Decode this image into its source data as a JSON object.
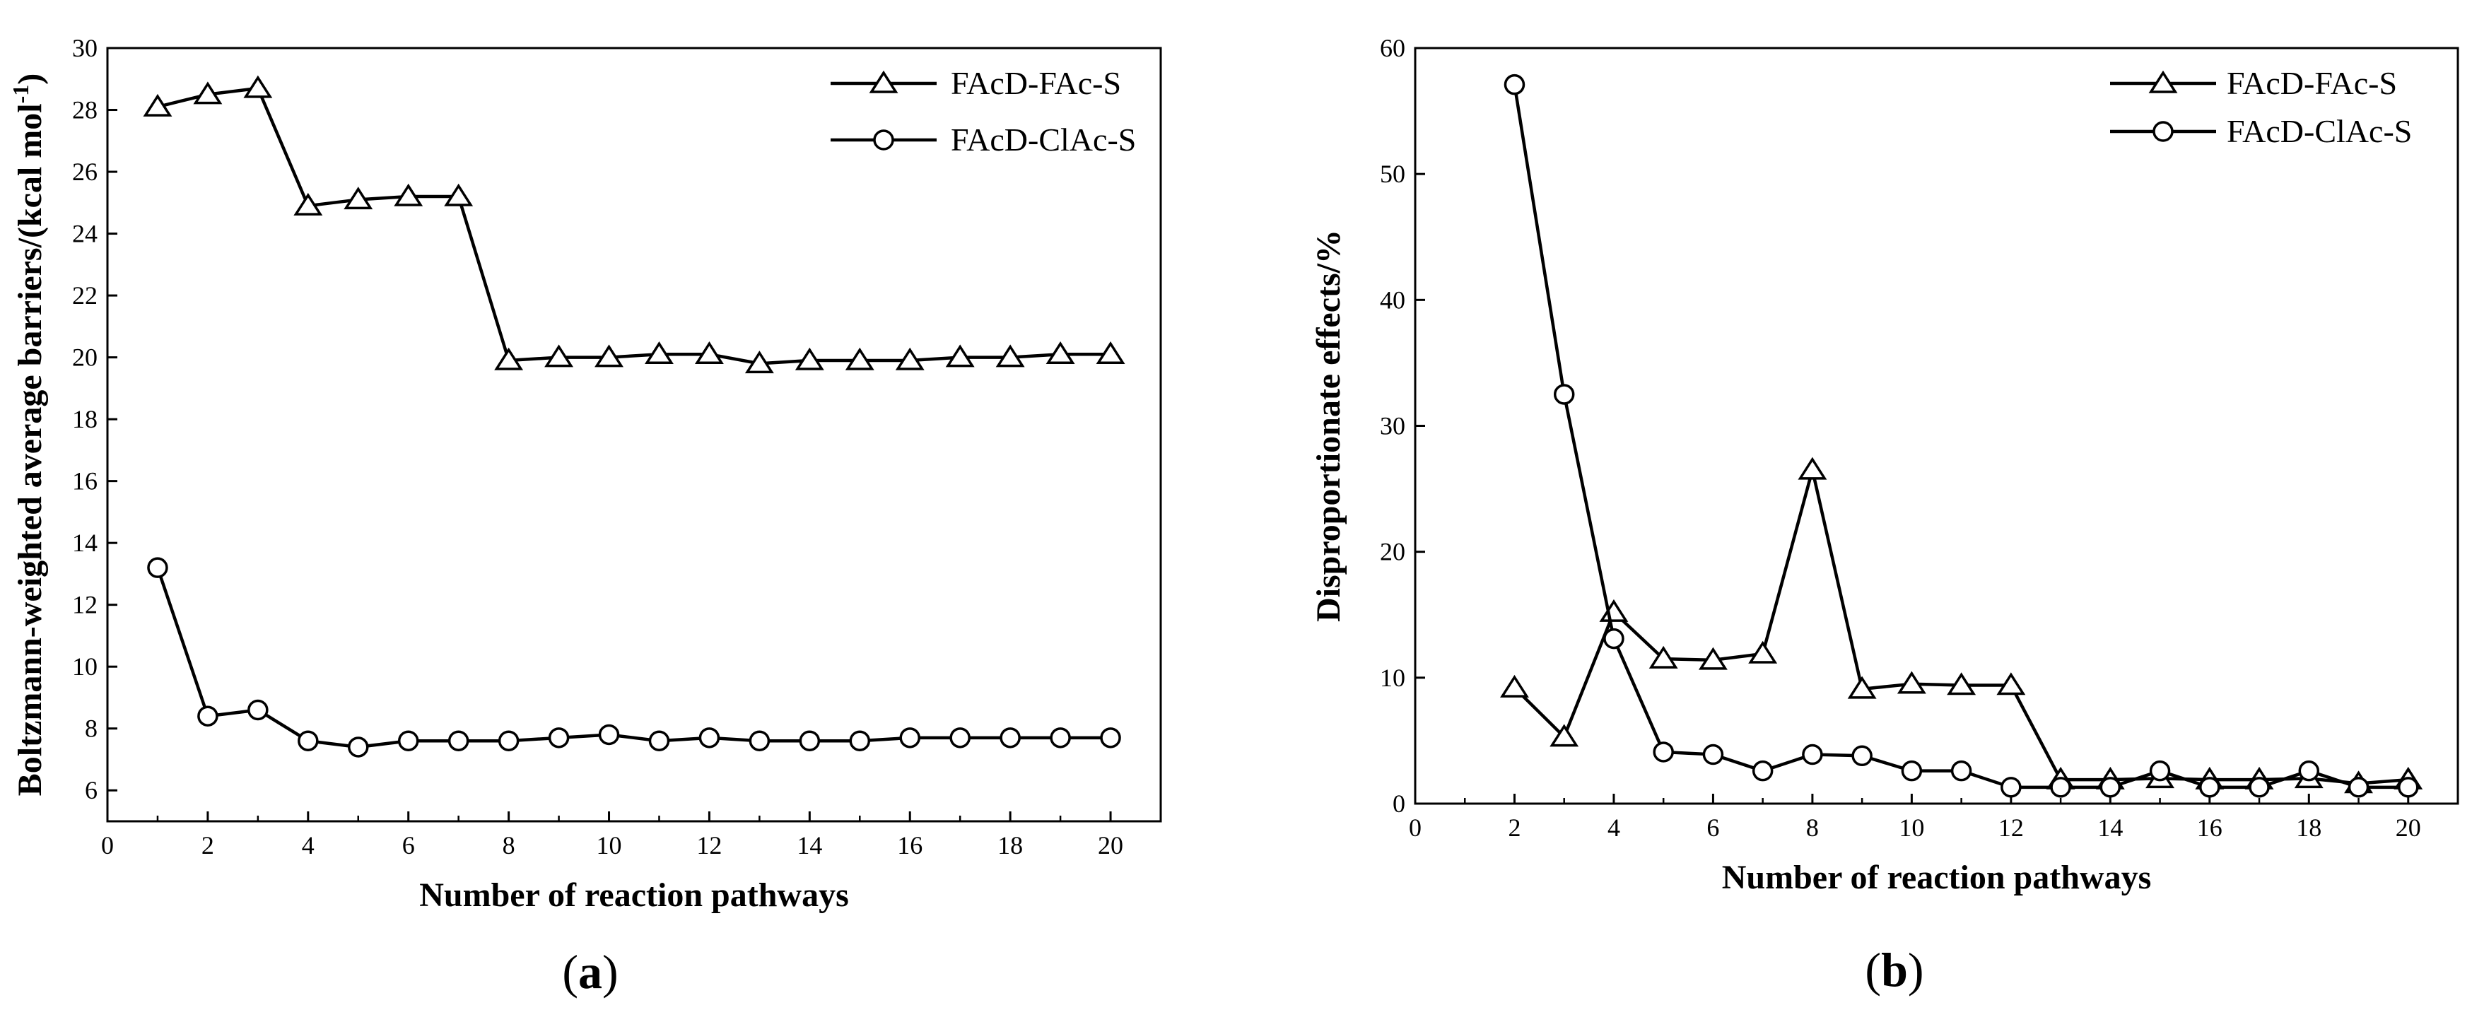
{
  "chart_data": [
    {
      "type": "line",
      "panel_label": "(a)",
      "panel_letter": "a",
      "title": "",
      "xlabel": "Number of reaction pathways",
      "ylabel": "Boltzmann-weighted average barriers/(kcal mol",
      "ylabel_sup": "-1",
      "ylabel_close": ")",
      "xlim": [
        0,
        21
      ],
      "ylim": [
        5,
        30
      ],
      "xticks": [
        0,
        2,
        4,
        6,
        8,
        10,
        12,
        14,
        16,
        18,
        20
      ],
      "yticks": [
        6,
        8,
        10,
        12,
        14,
        16,
        18,
        20,
        22,
        24,
        26,
        28,
        30
      ],
      "grid": false,
      "legend_position": "top-right",
      "series": [
        {
          "name": "FAcD-FAc-S",
          "marker": "triangle",
          "x": [
            1,
            2,
            3,
            4,
            5,
            6,
            7,
            8,
            9,
            10,
            11,
            12,
            13,
            14,
            15,
            16,
            17,
            18,
            19,
            20
          ],
          "values": [
            28.1,
            28.5,
            28.7,
            24.9,
            25.1,
            25.2,
            25.2,
            19.9,
            20.0,
            20.0,
            20.1,
            20.1,
            19.8,
            19.9,
            19.9,
            19.9,
            20.0,
            20.0,
            20.1,
            20.1
          ]
        },
        {
          "name": "FAcD-ClAc-S",
          "marker": "circle",
          "x": [
            1,
            2,
            3,
            4,
            5,
            6,
            7,
            8,
            9,
            10,
            11,
            12,
            13,
            14,
            15,
            16,
            17,
            18,
            19,
            20
          ],
          "values": [
            13.2,
            8.4,
            8.6,
            7.6,
            7.4,
            7.6,
            7.6,
            7.6,
            7.7,
            7.8,
            7.6,
            7.7,
            7.6,
            7.6,
            7.6,
            7.7,
            7.7,
            7.7,
            7.7,
            7.7
          ]
        }
      ]
    },
    {
      "type": "line",
      "panel_label": "(b)",
      "panel_letter": "b",
      "title": "",
      "xlabel": "Number of reaction pathways",
      "ylabel": "Disproportionate effects/%",
      "xlim": [
        0,
        21
      ],
      "ylim": [
        0,
        60
      ],
      "xticks": [
        0,
        2,
        4,
        6,
        8,
        10,
        12,
        14,
        16,
        18,
        20
      ],
      "yticks": [
        0,
        10,
        20,
        30,
        40,
        50,
        60
      ],
      "grid": false,
      "legend_position": "top-right",
      "series": [
        {
          "name": "FAcD-FAc-S",
          "marker": "triangle",
          "x": [
            2,
            3,
            4,
            5,
            6,
            7,
            8,
            9,
            10,
            11,
            12,
            13,
            14,
            15,
            16,
            17,
            18,
            19,
            20
          ],
          "values": [
            9.2,
            5.3,
            15.2,
            11.5,
            11.4,
            11.9,
            26.5,
            9.1,
            9.5,
            9.4,
            9.4,
            1.9,
            1.9,
            2.0,
            1.9,
            1.9,
            2.0,
            1.6,
            1.9
          ]
        },
        {
          "name": "FAcD-ClAc-S",
          "marker": "circle",
          "x": [
            2,
            3,
            4,
            5,
            6,
            7,
            8,
            9,
            10,
            11,
            12,
            13,
            14,
            15,
            16,
            17,
            18,
            19,
            20
          ],
          "values": [
            57.1,
            32.5,
            13.1,
            4.1,
            3.9,
            2.6,
            3.9,
            3.8,
            2.6,
            2.6,
            1.3,
            1.3,
            1.3,
            2.6,
            1.3,
            1.3,
            2.6,
            1.3,
            1.3
          ]
        }
      ]
    }
  ]
}
